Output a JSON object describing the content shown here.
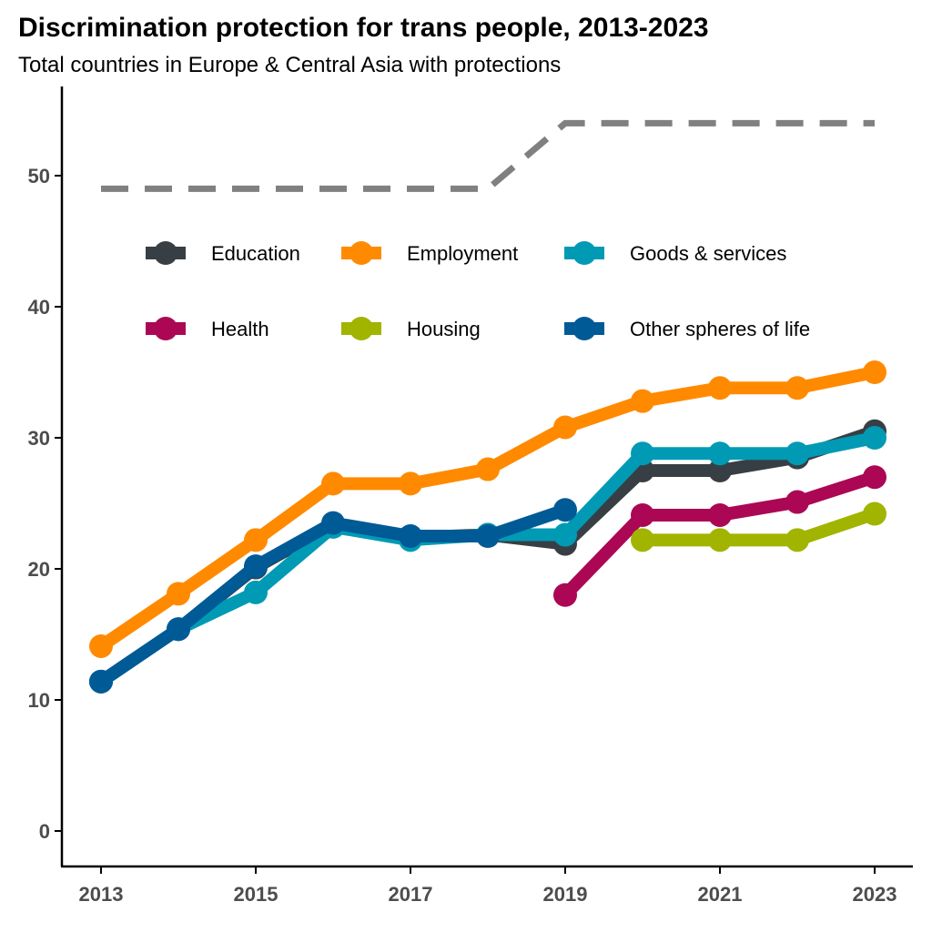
{
  "chart_data": {
    "type": "line",
    "title": "Discrimination protection for trans people, 2013-2023",
    "subtitle": "Total countries in Europe & Central Asia with protections",
    "xlabel": "",
    "ylabel": "",
    "x": [
      2013,
      2014,
      2015,
      2016,
      2017,
      2018,
      2019,
      2020,
      2021,
      2022,
      2023
    ],
    "xticks": [
      "2013",
      "2015",
      "2017",
      "2019",
      "2021",
      "2023"
    ],
    "yticks": [
      "0",
      "10",
      "20",
      "30",
      "40",
      "50"
    ],
    "ylim": [
      -2.7,
      56
    ],
    "xlim": [
      2012.5,
      2023.5
    ],
    "grid": false,
    "legend_position": "top-inside",
    "reference_line": {
      "style": "dashed",
      "color": "#808080",
      "values": [
        49,
        49,
        49,
        49,
        49,
        49,
        54,
        54,
        54,
        54,
        54
      ]
    },
    "series": [
      {
        "name": "Education",
        "color": "#373f45",
        "values": [
          11.4,
          15.4,
          20.1,
          23.4,
          22.4,
          22.6,
          21.9,
          27.5,
          27.5,
          28.5,
          30.5
        ]
      },
      {
        "name": "Employment",
        "color": "#ff8a00",
        "values": [
          14.1,
          18.1,
          22.2,
          26.5,
          26.5,
          27.6,
          30.8,
          32.8,
          33.8,
          33.8,
          35.0
        ]
      },
      {
        "name": "Goods & services",
        "color": "#009ab5",
        "values": [
          11.4,
          15.4,
          18.2,
          23.2,
          22.2,
          22.6,
          22.6,
          28.8,
          28.8,
          28.8,
          30.0
        ]
      },
      {
        "name": "Health",
        "color": "#ab0755",
        "values": [
          null,
          null,
          null,
          null,
          null,
          null,
          18.0,
          24.1,
          24.1,
          25.1,
          27.0
        ]
      },
      {
        "name": "Housing",
        "color": "#a0b400",
        "values": [
          null,
          null,
          null,
          null,
          null,
          null,
          null,
          22.2,
          22.2,
          22.2,
          24.2
        ]
      },
      {
        "name": "Other spheres of life",
        "color": "#005a96",
        "values": [
          11.4,
          15.4,
          20.2,
          23.5,
          22.5,
          22.5,
          24.5,
          null,
          null,
          null,
          null
        ]
      }
    ]
  }
}
